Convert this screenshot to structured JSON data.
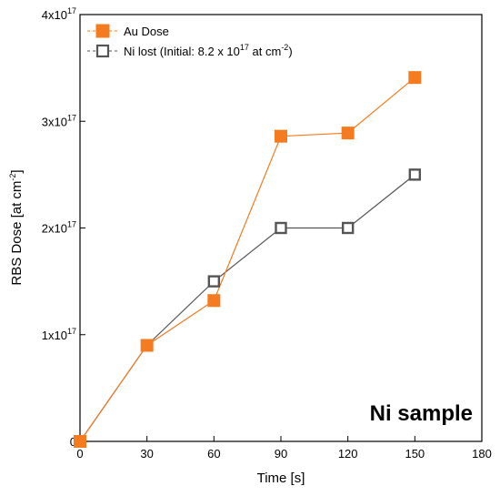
{
  "chart_data": {
    "type": "line",
    "xlabel": "Time [s]",
    "ylabel_main": "RBS Dose [at cm",
    "ylabel_sup": "-2",
    "ylabel_tail": "]",
    "xlim": [
      0,
      180
    ],
    "ylim": [
      0,
      4e+17
    ],
    "x_ticks": [
      0,
      30,
      60,
      90,
      120,
      150,
      180
    ],
    "x_tick_labels": [
      "0",
      "30",
      "60",
      "90",
      "120",
      "150",
      "180"
    ],
    "y_ticks": [
      {
        "value": 0,
        "base": "0",
        "sup": ""
      },
      {
        "value": 1e+17,
        "base": "1x10",
        "sup": "17"
      },
      {
        "value": 2e+17,
        "base": "2x10",
        "sup": "17"
      },
      {
        "value": 3e+17,
        "base": "3x10",
        "sup": "17"
      },
      {
        "value": 4e+17,
        "base": "4x10",
        "sup": "17"
      }
    ],
    "grid": false,
    "legend_position": "top-left",
    "annotation": "Ni sample",
    "series": [
      {
        "name": "Au Dose",
        "marker": "filled-square",
        "color": "#F47B20",
        "x": [
          0,
          30,
          60,
          90,
          120,
          150
        ],
        "y": [
          0.0,
          9e+16,
          1.32e+17,
          2.86e+17,
          2.89e+17,
          3.41e+17
        ]
      },
      {
        "name": "Ni lost (Initial: 8.2 x 10",
        "name_sup": "17",
        "name_tail": " at cm",
        "name_sup2": "-2",
        "name_end": ")",
        "marker": "open-square",
        "color": "#555555",
        "x": [
          0,
          30,
          60,
          90,
          120,
          150
        ],
        "y": [
          0.0,
          9e+16,
          1.5e+17,
          2e+17,
          2e+17,
          2.5e+17
        ]
      }
    ]
  }
}
